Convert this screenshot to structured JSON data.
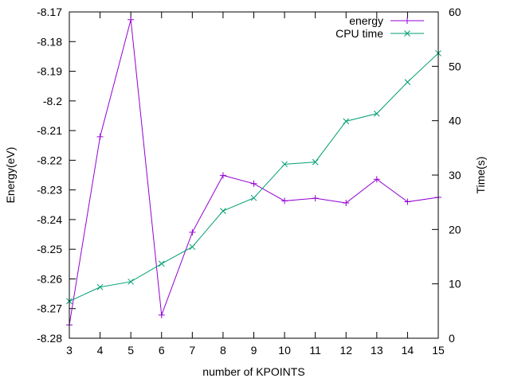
{
  "chart_data": {
    "type": "line",
    "title": "",
    "xlabel": "number of KPOINTS",
    "ylabel": "Energy(eV)",
    "y2label": "Time(s)",
    "x": [
      3,
      4,
      5,
      6,
      7,
      8,
      9,
      10,
      11,
      12,
      13,
      14,
      15
    ],
    "xlim": [
      3,
      15
    ],
    "ylim": [
      -8.28,
      -8.17
    ],
    "y2lim": [
      0,
      60
    ],
    "x_ticks": [
      "3",
      "4",
      "5",
      "6",
      "7",
      "8",
      "9",
      "10",
      "11",
      "12",
      "13",
      "14",
      "15"
    ],
    "y_ticks": [
      "-8.28",
      "-8.27",
      "-8.26",
      "-8.25",
      "-8.24",
      "-8.23",
      "-8.22",
      "-8.21",
      "-8.2",
      "-8.19",
      "-8.18",
      "-8.17"
    ],
    "y2_ticks": [
      "0",
      "10",
      "20",
      "30",
      "40",
      "50",
      "60"
    ],
    "grid": false,
    "legend": "top-right",
    "series": [
      {
        "name": "energy",
        "axis": "left",
        "marker": "plus",
        "color": "#9400d3",
        "values": [
          -8.2755,
          -8.2121,
          -8.1726,
          -8.2722,
          -8.2443,
          -8.2251,
          -8.2279,
          -8.2337,
          -8.2328,
          -8.2344,
          -8.2264,
          -8.234,
          -8.2325
        ]
      },
      {
        "name": "CPU time",
        "axis": "right",
        "marker": "x",
        "color": "#009e73",
        "values": [
          6.8,
          9.4,
          10.4,
          13.7,
          16.8,
          23.4,
          25.8,
          32.0,
          32.4,
          39.9,
          41.3,
          47.1,
          52.4
        ]
      }
    ]
  }
}
